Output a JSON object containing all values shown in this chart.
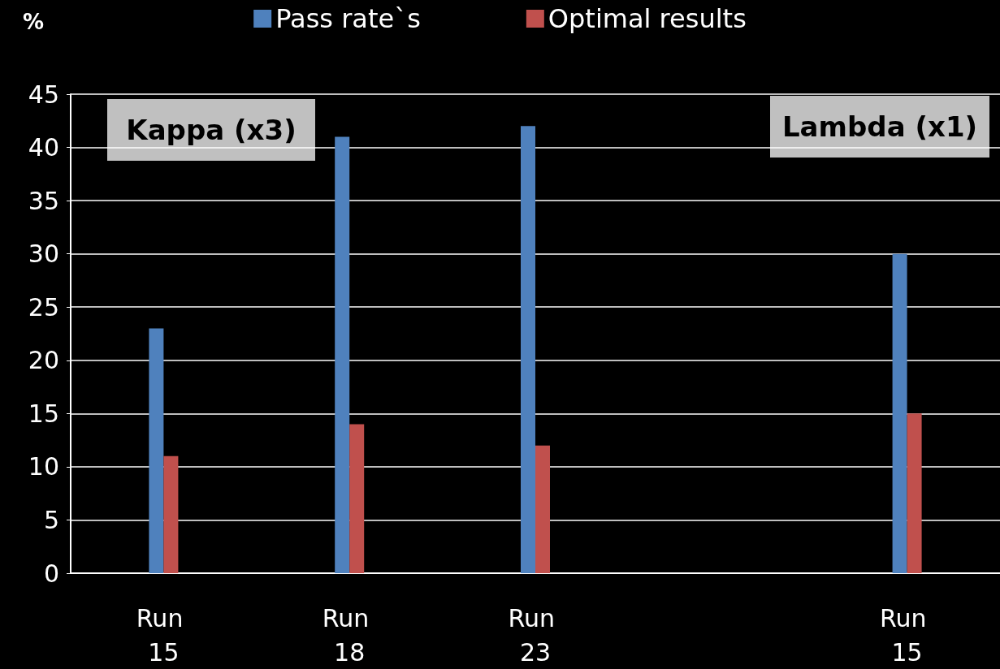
{
  "chart_data": {
    "type": "bar",
    "ylabel": "%",
    "categories": [
      "Run 15",
      "Run 18",
      "Run 23",
      null,
      "Run 15"
    ],
    "series": [
      {
        "name": "Pass rate`s",
        "color": "#4f81bd",
        "values": [
          23,
          41,
          42,
          null,
          30
        ]
      },
      {
        "name": "Optimal results",
        "color": "#c0504d",
        "values": [
          11,
          14,
          12,
          null,
          15
        ]
      }
    ],
    "ylim": [
      0,
      45
    ],
    "yticks": [
      0,
      5,
      10,
      15,
      20,
      25,
      30,
      35,
      40,
      45
    ],
    "grid": "y",
    "legend": "top",
    "annotations": [
      "Kappa (x3)",
      "Lambda (x1)"
    ]
  }
}
